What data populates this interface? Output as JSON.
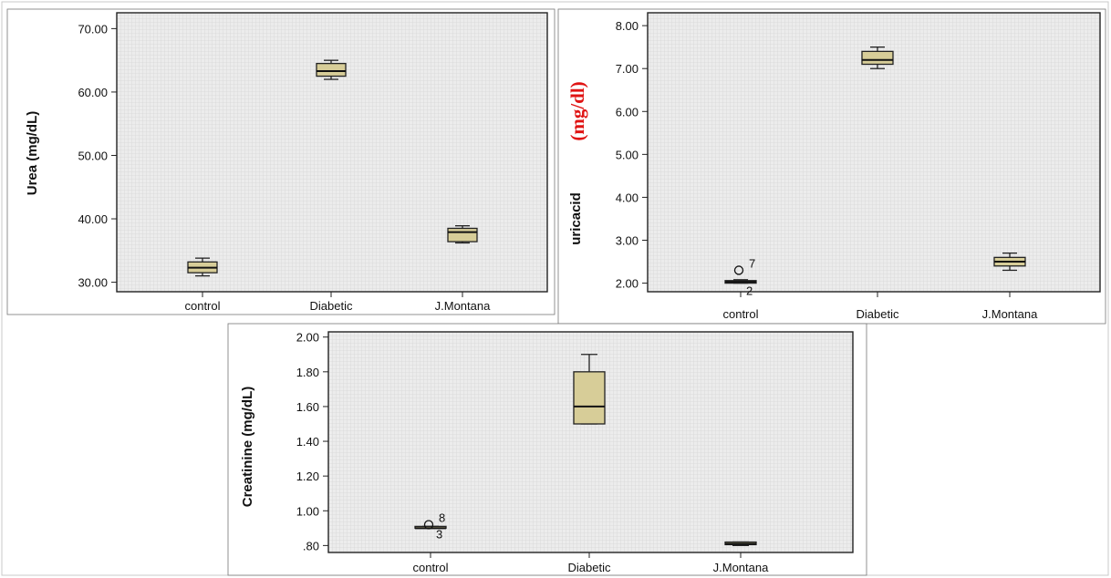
{
  "colors": {
    "box_fill": "#d7cd98",
    "plot_bg": "#ececec",
    "grid": "#d4d4d4",
    "red_unit": "#e01414"
  },
  "chart_data": [
    {
      "type": "box",
      "ylabel": "Urea (mg/dL)",
      "categories": [
        "control",
        "Diabetic",
        "J.Montana"
      ],
      "ylim": [
        28.5,
        72.5
      ],
      "yticks": [
        "30.00",
        "40.00",
        "50.00",
        "60.00",
        "70.00"
      ],
      "ytick_values": [
        30,
        40,
        50,
        60,
        70
      ],
      "boxes": [
        {
          "category": "control",
          "min": 31.0,
          "q1": 31.5,
          "median": 32.3,
          "q3": 33.2,
          "max": 33.8,
          "outliers": []
        },
        {
          "category": "Diabetic",
          "min": 62.0,
          "q1": 62.5,
          "median": 63.3,
          "q3": 64.5,
          "max": 65.0,
          "outliers": []
        },
        {
          "category": "J.Montana",
          "min": 36.2,
          "q1": 36.4,
          "median": 37.9,
          "q3": 38.5,
          "max": 38.9,
          "outliers": []
        }
      ],
      "grid": true
    },
    {
      "type": "box",
      "ylabel": "uricacid",
      "ylabel_unit": "(mg/dl)",
      "categories": [
        "control",
        "Diabetic",
        "J.Montana"
      ],
      "ylim": [
        1.8,
        8.3
      ],
      "yticks": [
        "2.00",
        "3.00",
        "4.00",
        "5.00",
        "6.00",
        "7.00",
        "8.00"
      ],
      "ytick_values": [
        2,
        3,
        4,
        5,
        6,
        7,
        8
      ],
      "boxes": [
        {
          "category": "control",
          "min": 2.0,
          "q1": 2.0,
          "median": 2.03,
          "q3": 2.06,
          "max": 2.08,
          "outliers": [
            {
              "value": 2.3,
              "label": "7"
            },
            {
              "value": 1.96,
              "label": "2"
            }
          ]
        },
        {
          "category": "Diabetic",
          "min": 7.0,
          "q1": 7.1,
          "median": 7.2,
          "q3": 7.4,
          "max": 7.5,
          "outliers": []
        },
        {
          "category": "J.Montana",
          "min": 2.3,
          "q1": 2.4,
          "median": 2.5,
          "q3": 2.6,
          "max": 2.7,
          "outliers": []
        }
      ],
      "grid": true
    },
    {
      "type": "box",
      "ylabel": "Creatinine (mg/dL)",
      "categories": [
        "control",
        "Diabetic",
        "J.Montana"
      ],
      "ylim": [
        0.76,
        2.03
      ],
      "yticks": [
        ".80",
        "1.00",
        "1.20",
        "1.40",
        "1.60",
        "1.80",
        "2.00"
      ],
      "ytick_values": [
        0.8,
        1.0,
        1.2,
        1.4,
        1.6,
        1.8,
        2.0
      ],
      "boxes": [
        {
          "category": "control",
          "min": 0.9,
          "q1": 0.9,
          "median": 0.9,
          "q3": 0.91,
          "max": 0.91,
          "outliers": [
            {
              "value": 0.92,
              "label": "8"
            },
            {
              "value": 0.9,
              "label": "3"
            }
          ]
        },
        {
          "category": "Diabetic",
          "min": 1.5,
          "q1": 1.5,
          "median": 1.6,
          "q3": 1.8,
          "max": 1.9,
          "outliers": []
        },
        {
          "category": "J.Montana",
          "min": 0.8,
          "q1": 0.805,
          "median": 0.81,
          "q3": 0.82,
          "max": 0.82,
          "outliers": []
        }
      ],
      "grid": true
    }
  ]
}
